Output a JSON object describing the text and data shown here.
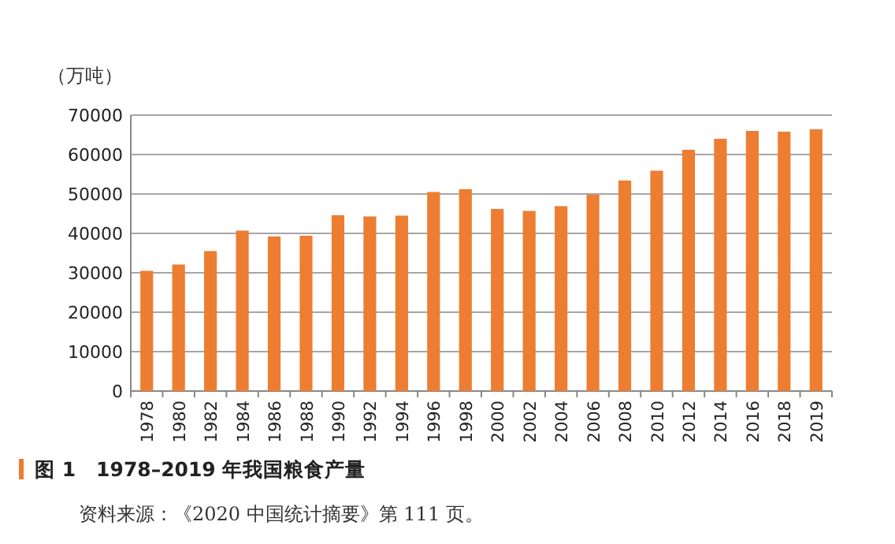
{
  "chart_data": {
    "type": "bar",
    "title": "图 1　1978–2019 年我国粮食产量",
    "ylabel": "（万吨）",
    "annotations": [
      "资料来源：《2020 中国统计摘要》第 111 页。"
    ],
    "categories": [
      "1978",
      "1980",
      "1982",
      "1984",
      "1986",
      "1988",
      "1990",
      "1992",
      "1994",
      "1996",
      "1998",
      "2000",
      "2002",
      "2004",
      "2006",
      "2008",
      "2010",
      "2012",
      "2014",
      "2016",
      "2018",
      "2019"
    ],
    "values": [
      30500,
      32100,
      35500,
      40700,
      39200,
      39400,
      44600,
      44300,
      44500,
      50500,
      51200,
      46200,
      45700,
      46900,
      49800,
      53400,
      55900,
      61200,
      64000,
      66000,
      65800,
      66400
    ],
    "color": "#ed7d31",
    "ylim": [
      0,
      70000
    ],
    "yticks": [
      0,
      10000,
      20000,
      30000,
      40000,
      50000,
      60000,
      70000
    ],
    "grid": "y"
  }
}
